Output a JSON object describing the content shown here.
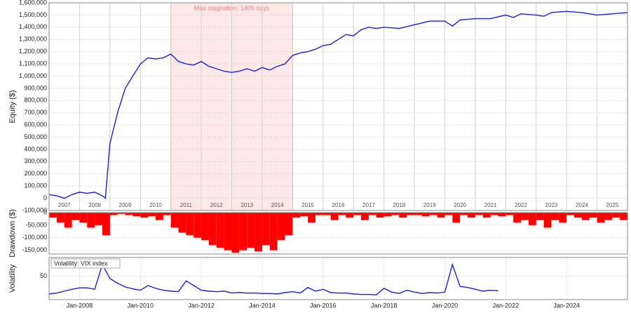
{
  "chart_data": [
    {
      "type": "line",
      "ylabel": "Equity ($)",
      "xlim": [
        2007,
        2026
      ],
      "ylim": [
        -100000,
        1600000
      ],
      "yticks": [
        {
          "value": -100000,
          "label": "-100,000"
        },
        0,
        {
          "value": 100000,
          "label": "100,000"
        },
        {
          "value": 200000,
          "label": "200,000"
        },
        {
          "value": 300000,
          "label": "300,000"
        },
        {
          "value": 400000,
          "label": "400,000"
        },
        {
          "value": 500000,
          "label": "500,000"
        },
        {
          "value": 600000,
          "label": "600,000"
        },
        {
          "value": 700000,
          "label": "700,000"
        },
        {
          "value": 800000,
          "label": "800,000"
        },
        {
          "value": 900000,
          "label": "900,000"
        },
        {
          "value": 1000000,
          "label": "1,000,000"
        },
        {
          "value": 1100000,
          "label": "1,100,000"
        },
        {
          "value": 1200000,
          "label": "1,200,000"
        },
        {
          "value": 1300000,
          "label": "1,300,000"
        },
        {
          "value": 1400000,
          "label": "1,400,000"
        },
        {
          "value": 1500000,
          "label": "1,500,000"
        },
        {
          "value": 1600000,
          "label": "1,600,000"
        }
      ],
      "grid": true,
      "year_labels": [
        "2007",
        "2008",
        "2009",
        "2010",
        "2011",
        "2012",
        "2013",
        "2014",
        "2015",
        "2016",
        "2017",
        "2018",
        "2019",
        "2020",
        "2021",
        "2022",
        "2023",
        "2024",
        "2025"
      ],
      "stagnation": {
        "label": "Max stagnation: 1409 days",
        "start": 2011.0,
        "end": 2015.0,
        "color": "#fde8e8"
      },
      "series": [
        {
          "name": "Equity",
          "color": "#1f1fd6",
          "x": [
            2007.0,
            2007.25,
            2007.5,
            2007.75,
            2008.0,
            2008.25,
            2008.5,
            2008.75,
            2008.85,
            2009.0,
            2009.25,
            2009.5,
            2009.75,
            2010.0,
            2010.25,
            2010.5,
            2010.75,
            2011.0,
            2011.25,
            2011.5,
            2011.75,
            2012.0,
            2012.25,
            2012.5,
            2012.75,
            2013.0,
            2013.25,
            2013.5,
            2013.75,
            2014.0,
            2014.25,
            2014.5,
            2014.75,
            2015.0,
            2015.25,
            2015.5,
            2015.75,
            2016.0,
            2016.25,
            2016.5,
            2016.75,
            2017.0,
            2017.25,
            2017.5,
            2017.75,
            2018.0,
            2018.5,
            2019.0,
            2019.5,
            2020.0,
            2020.25,
            2020.5,
            2021.0,
            2021.5,
            2022.0,
            2022.25,
            2022.5,
            2023.0,
            2023.25,
            2023.5,
            2024.0,
            2024.5,
            2025.0,
            2025.5,
            2026.0
          ],
          "values": [
            30000,
            20000,
            0,
            30000,
            50000,
            40000,
            50000,
            20000,
            0,
            450000,
            700000,
            900000,
            1000000,
            1100000,
            1150000,
            1140000,
            1150000,
            1180000,
            1120000,
            1100000,
            1090000,
            1120000,
            1080000,
            1060000,
            1040000,
            1030000,
            1040000,
            1060000,
            1040000,
            1070000,
            1050000,
            1080000,
            1100000,
            1170000,
            1190000,
            1200000,
            1220000,
            1250000,
            1260000,
            1300000,
            1340000,
            1330000,
            1380000,
            1400000,
            1390000,
            1400000,
            1390000,
            1420000,
            1450000,
            1450000,
            1410000,
            1460000,
            1470000,
            1470000,
            1500000,
            1480000,
            1510000,
            1500000,
            1490000,
            1520000,
            1530000,
            1520000,
            1500000,
            1510000,
            1520000
          ]
        }
      ]
    },
    {
      "type": "bar",
      "ylabel": "Drawdown ($)",
      "xlim": [
        2007,
        2026
      ],
      "ylim": [
        -165000,
        0
      ],
      "yticks": [
        0,
        {
          "value": -50000,
          "label": "-50,000"
        },
        {
          "value": -100000,
          "label": "-100,000"
        },
        {
          "value": -150000,
          "label": "-150,000"
        }
      ],
      "grid": true,
      "series": [
        {
          "name": "Drawdown",
          "color": "#ff0000",
          "x": [
            2007.0,
            2007.25,
            2007.5,
            2007.75,
            2008.0,
            2008.25,
            2008.5,
            2008.75,
            2009.0,
            2009.25,
            2009.5,
            2009.75,
            2010.0,
            2010.25,
            2010.5,
            2010.75,
            2011.0,
            2011.25,
            2011.5,
            2011.75,
            2012.0,
            2012.25,
            2012.5,
            2012.75,
            2013.0,
            2013.25,
            2013.5,
            2013.75,
            2014.0,
            2014.25,
            2014.5,
            2014.75,
            2015.0,
            2015.25,
            2015.5,
            2015.75,
            2016.0,
            2016.25,
            2016.5,
            2016.75,
            2017.0,
            2017.25,
            2017.5,
            2017.75,
            2018.0,
            2018.25,
            2018.5,
            2018.75,
            2019.0,
            2019.25,
            2019.5,
            2019.75,
            2020.0,
            2020.25,
            2020.5,
            2020.75,
            2021.0,
            2021.25,
            2021.5,
            2021.75,
            2022.0,
            2022.25,
            2022.5,
            2022.75,
            2023.0,
            2023.25,
            2023.5,
            2023.75,
            2024.0,
            2024.25,
            2024.5,
            2024.75,
            2025.0,
            2025.25,
            2025.5,
            2025.75
          ],
          "values": [
            -20000,
            -40000,
            -60000,
            -30000,
            -40000,
            -60000,
            -50000,
            -90000,
            -10000,
            -5000,
            -10000,
            -15000,
            -20000,
            -15000,
            -30000,
            -10000,
            -60000,
            -80000,
            -90000,
            -100000,
            -110000,
            -130000,
            -140000,
            -150000,
            -160000,
            -150000,
            -140000,
            -155000,
            -130000,
            -150000,
            -110000,
            -90000,
            -20000,
            -15000,
            -40000,
            -10000,
            -10000,
            -30000,
            -10000,
            -20000,
            -10000,
            -30000,
            -10000,
            -20000,
            -15000,
            -10000,
            -20000,
            -10000,
            -10000,
            -15000,
            -10000,
            -20000,
            -10000,
            -40000,
            -10000,
            -20000,
            -10000,
            -20000,
            -10000,
            -15000,
            -10000,
            -40000,
            -30000,
            -50000,
            -30000,
            -60000,
            -30000,
            -40000,
            -10000,
            -20000,
            -30000,
            -20000,
            -40000,
            -30000,
            -20000,
            -30000
          ]
        }
      ]
    },
    {
      "type": "line",
      "ylabel": "Volatility",
      "xlim": [
        2007,
        2026
      ],
      "ylim": [
        0,
        90
      ],
      "yticks": [
        50
      ],
      "grid": true,
      "xticks": [
        {
          "value": 2008,
          "label": "Jan-2008"
        },
        {
          "value": 2010,
          "label": "Jan-2010"
        },
        {
          "value": 2012,
          "label": "Jan-2012"
        },
        {
          "value": 2014,
          "label": "Jan-2014"
        },
        {
          "value": 2016,
          "label": "Jan-2016"
        },
        {
          "value": 2018,
          "label": "Jan-2018"
        },
        {
          "value": 2020,
          "label": "Jan-2020"
        },
        {
          "value": 2022,
          "label": "Jan-2022"
        },
        {
          "value": 2024,
          "label": "Jan-2024"
        }
      ],
      "series": [
        {
          "name": "Volatility: VIX index",
          "color": "#1f1fd6",
          "x": [
            2007.0,
            2007.25,
            2007.5,
            2007.75,
            2008.0,
            2008.25,
            2008.5,
            2008.75,
            2009.0,
            2009.25,
            2009.5,
            2009.75,
            2010.0,
            2010.25,
            2010.5,
            2010.75,
            2011.0,
            2011.25,
            2011.5,
            2011.75,
            2012.0,
            2012.25,
            2012.5,
            2012.75,
            2013.0,
            2013.25,
            2013.5,
            2013.75,
            2014.0,
            2014.25,
            2014.5,
            2014.75,
            2015.0,
            2015.25,
            2015.5,
            2015.75,
            2016.0,
            2016.25,
            2016.5,
            2016.75,
            2017.0,
            2017.25,
            2017.5,
            2017.75,
            2018.0,
            2018.25,
            2018.5,
            2018.75,
            2019.0,
            2019.25,
            2019.5,
            2019.75,
            2020.0,
            2020.25,
            2020.5,
            2020.75,
            2021.0,
            2021.25,
            2021.5,
            2021.75
          ],
          "values": [
            12,
            14,
            18,
            22,
            25,
            25,
            22,
            75,
            45,
            35,
            27,
            23,
            20,
            30,
            24,
            20,
            18,
            17,
            40,
            30,
            20,
            18,
            17,
            18,
            14,
            15,
            14,
            14,
            13,
            13,
            12,
            15,
            17,
            14,
            26,
            18,
            22,
            15,
            14,
            14,
            12,
            11,
            11,
            10,
            24,
            16,
            13,
            20,
            16,
            13,
            15,
            14,
            16,
            75,
            28,
            26,
            22,
            18,
            20,
            19
          ]
        }
      ]
    }
  ]
}
